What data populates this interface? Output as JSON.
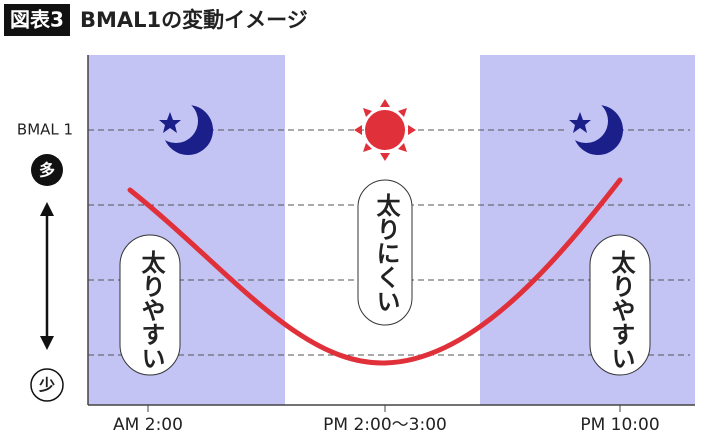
{
  "header": {
    "badge": "図表3",
    "title": "BMAL1の変動イメージ"
  },
  "y_axis": {
    "label": "BMAL 1",
    "high": "多",
    "low": "少"
  },
  "x_axis": {
    "labels": [
      "AM 2:00",
      "PM 2:00〜3:00",
      "PM 10:00"
    ]
  },
  "notes": [
    "太りやすい",
    "太りにくい",
    "太りやすい"
  ]
}
